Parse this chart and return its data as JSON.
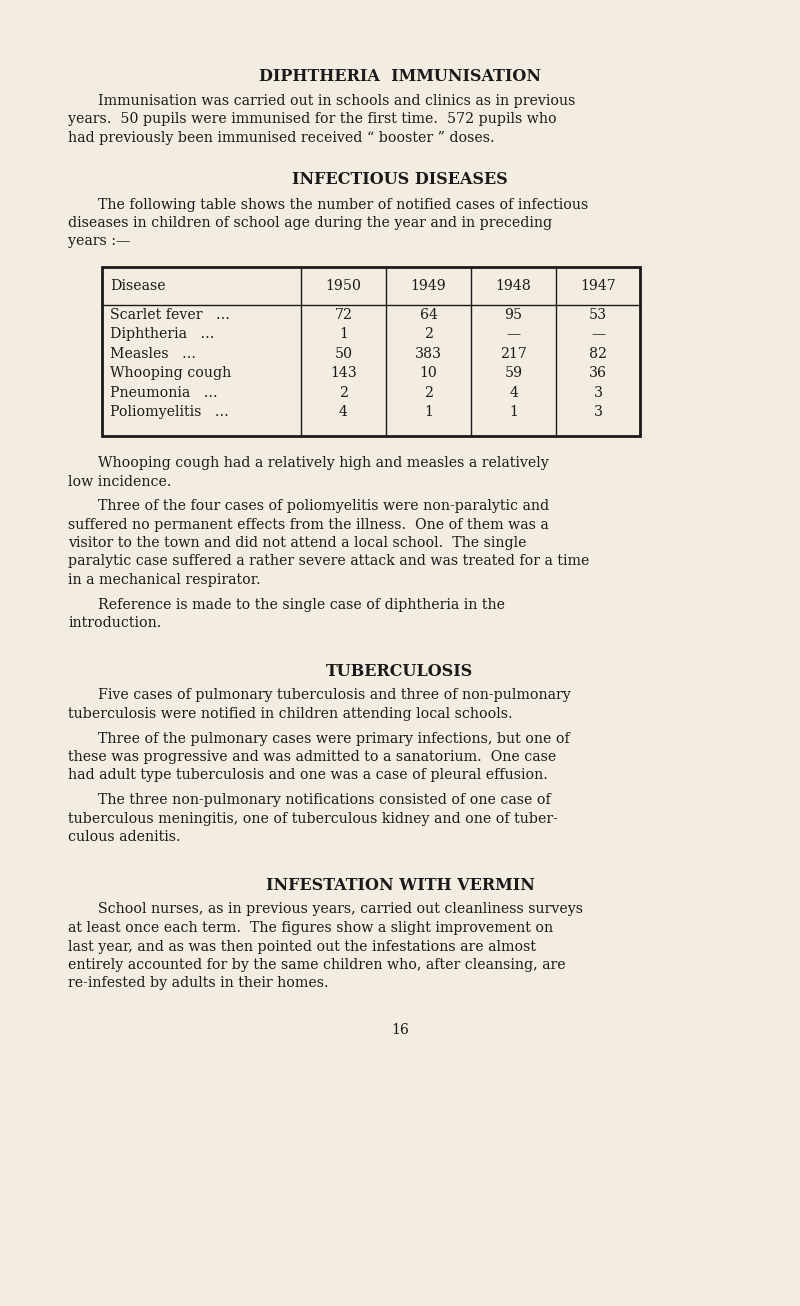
{
  "bg_color": "#f2ede0",
  "text_color": "#1a1a1a",
  "page_width": 8.0,
  "page_height": 13.06,
  "dpi": 100,
  "title1": "DIPHTHERIA  IMMUNISATION",
  "para1_lines": [
    "Immunisation was carried out in schools and clinics as in previous",
    "years.  50 pupils were immunised for the first time.  572 pupils who",
    "had previously been immunised received “ booster ” doses."
  ],
  "title2": "INFECTIOUS DISEASES",
  "para2_lines": [
    "The following table shows the number of notified cases of infectious",
    "diseases in children of school age during the year and in preceding",
    "years :—"
  ],
  "table_headers": [
    "Disease",
    "1950",
    "1949",
    "1948",
    "1947"
  ],
  "table_rows": [
    [
      "Scarlet fever   ...",
      "72",
      "64",
      "95",
      "53"
    ],
    [
      "Diphtheria   ...",
      "1",
      "2",
      "—",
      "—"
    ],
    [
      "Measles   ...",
      "50",
      "383",
      "217",
      "82"
    ],
    [
      "Whooping cough",
      "143",
      "10",
      "59",
      "36"
    ],
    [
      "Pneumonia   ...",
      "2",
      "2",
      "4",
      "3"
    ],
    [
      "Poliomyelitis   ...",
      "4",
      "1",
      "1",
      "3"
    ]
  ],
  "para3_lines": [
    "Whooping cough had a relatively high and measles a relatively",
    "low incidence."
  ],
  "para4_lines": [
    "Three of the four cases of poliomyelitis were non-paralytic and",
    "suffered no permanent effects from the illness.  One of them was a",
    "visitor to the town and did not attend a local school.  The single",
    "paralytic case suffered a rather severe attack and was treated for a time",
    "in a mechanical respirator."
  ],
  "para5_lines": [
    "Reference is made to the single case of diphtheria in the",
    "introduction."
  ],
  "title3": "TUBERCULOSIS",
  "para6_lines": [
    "Five cases of pulmonary tuberculosis and three of non-pulmonary",
    "tuberculosis were notified in children attending local schools."
  ],
  "para7_lines": [
    "Three of the pulmonary cases were primary infections, but one of",
    "these was progressive and was admitted to a sanatorium.  One case",
    "had adult type tuberculosis and one was a case of pleural effusion."
  ],
  "para8_lines": [
    "The three non-pulmonary notifications consisted of one case of",
    "tuberculous meningitis, one of tuberculous kidney and one of tuber-",
    "culous adenitis."
  ],
  "title4": "INFESTATION WITH VERMIN",
  "para9_lines": [
    "School nurses, as in previous years, carried out cleanliness surveys",
    "at least once each term.  The figures show a slight improvement on",
    "last year, and as was then pointed out the infestations are almost",
    "entirely accounted for by the same children who, after cleansing, are",
    "re-infested by adults in their homes."
  ],
  "page_number": "16"
}
